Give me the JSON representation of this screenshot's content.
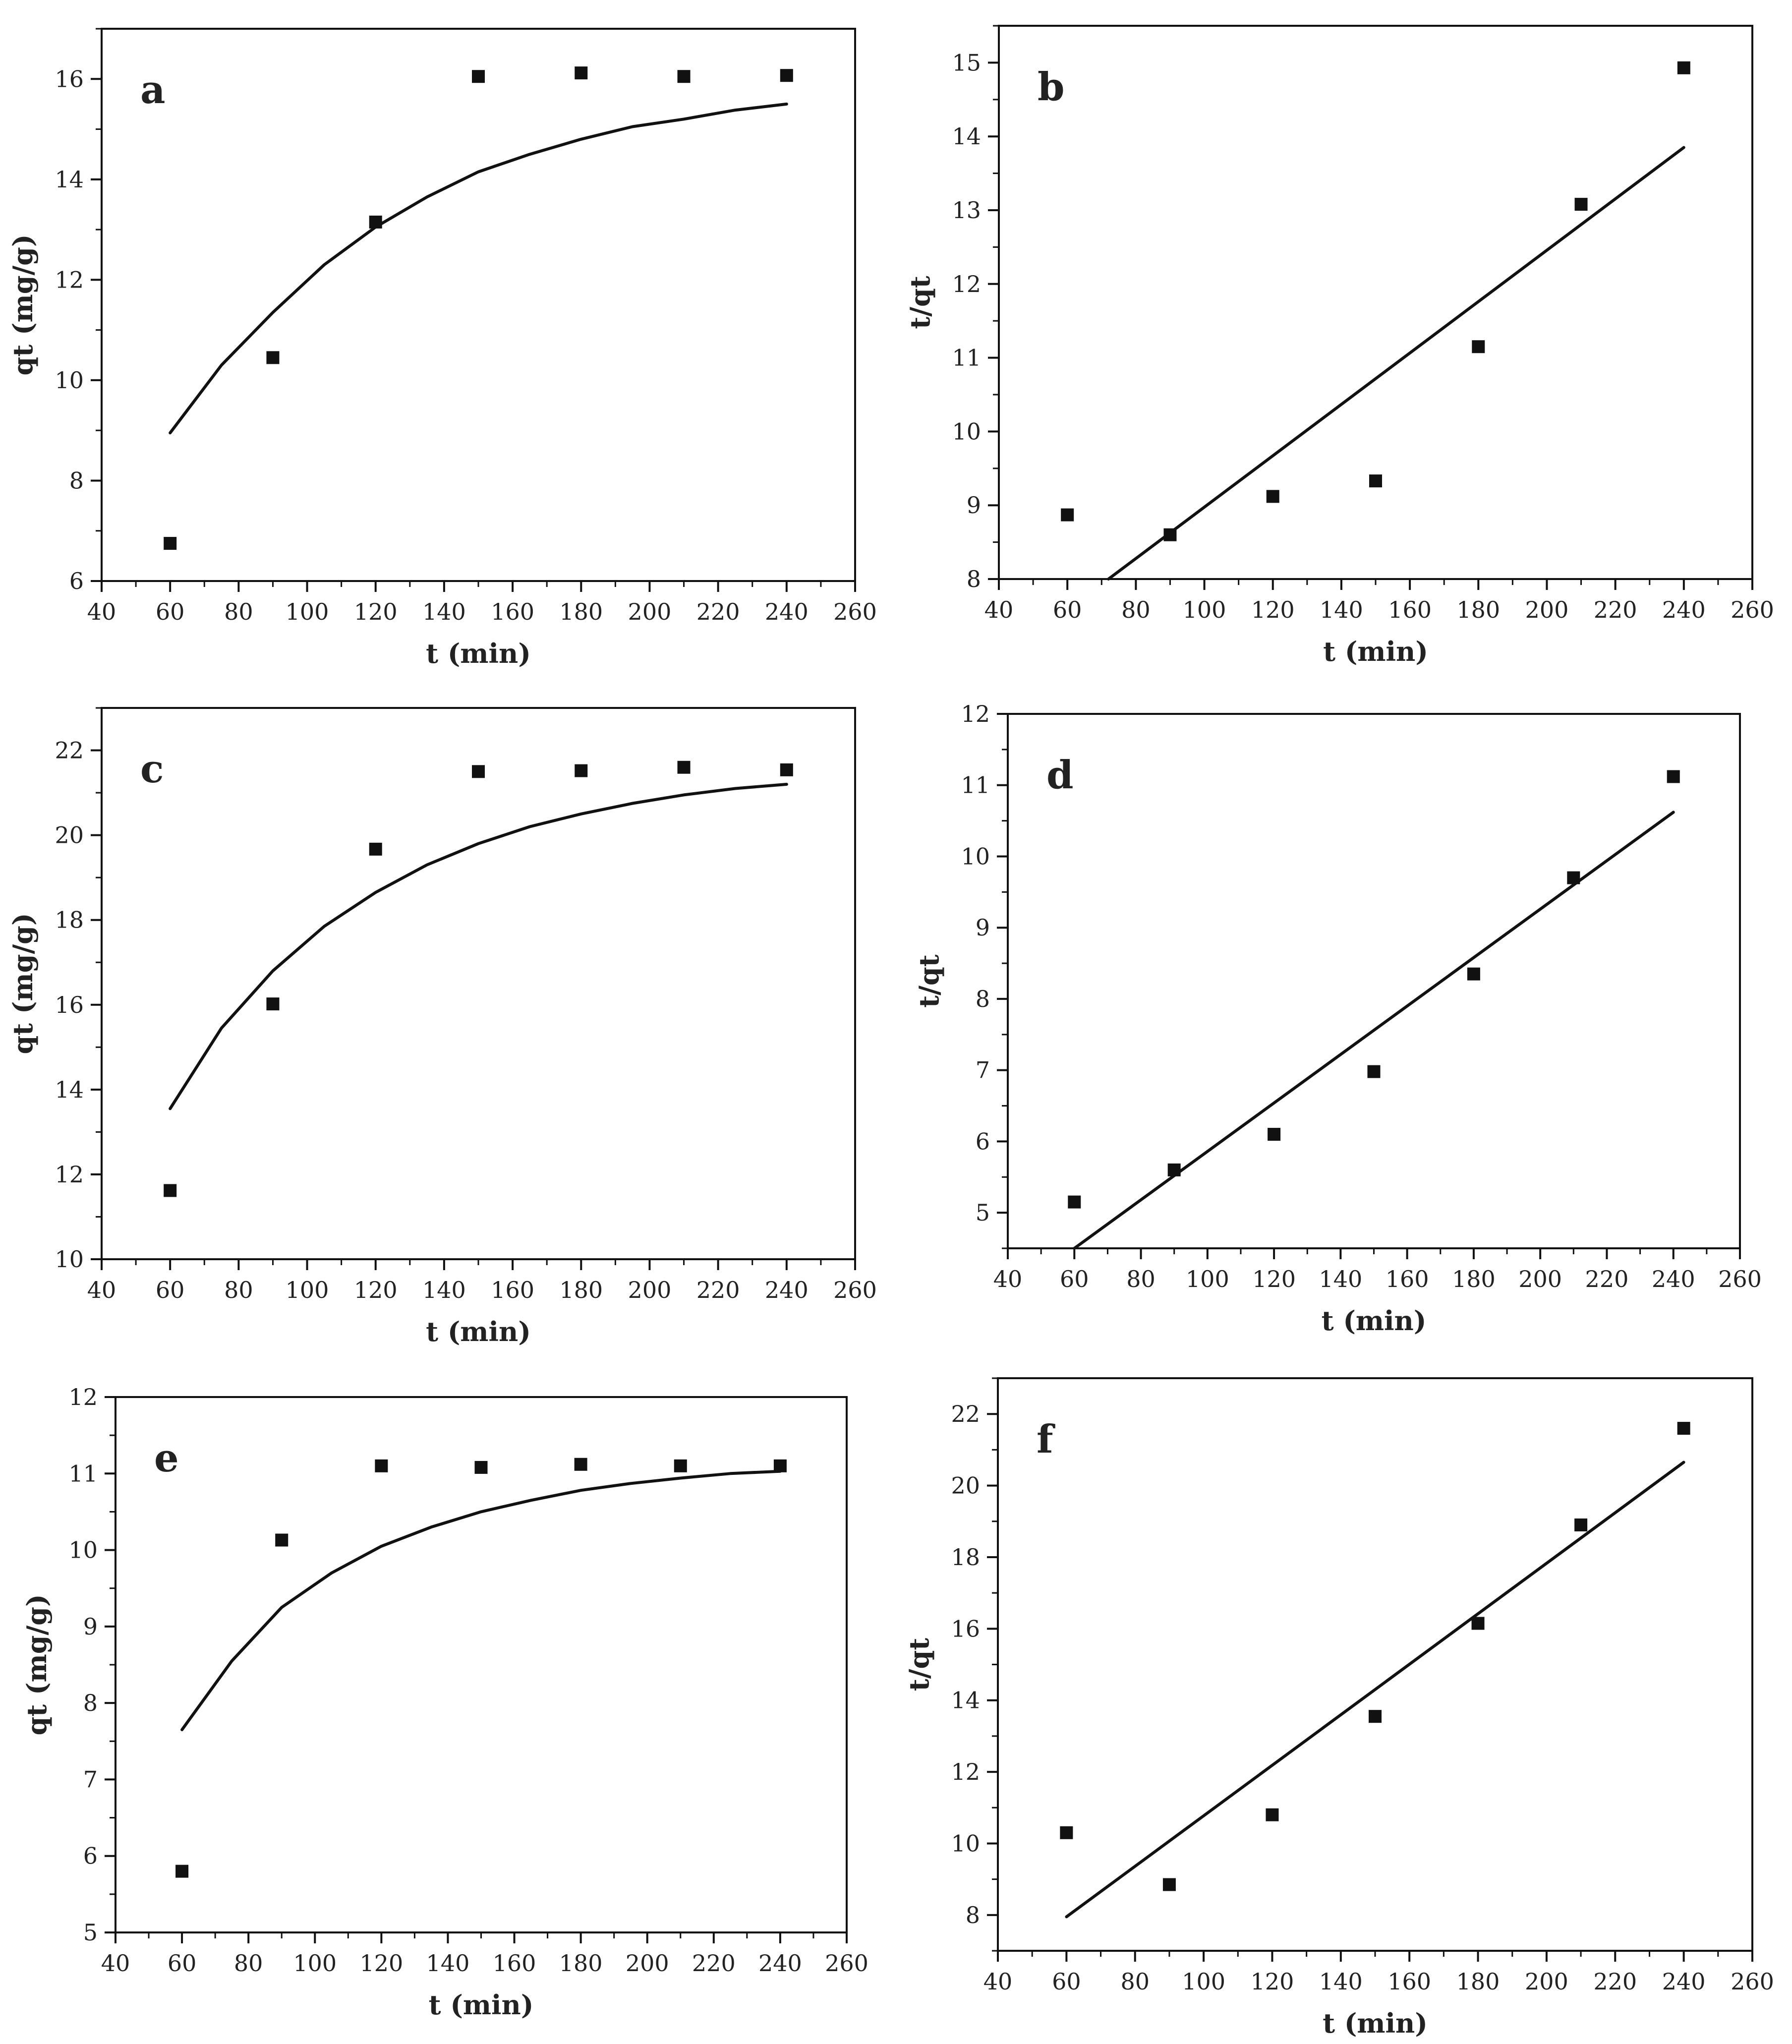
{
  "figure": {
    "style": {
      "ink": "#111111",
      "background": "#ffffff"
    }
  },
  "chart_data": [
    {
      "type": "scatter",
      "panel": "a",
      "xlabel": "t (min)",
      "ylabel": "qt (mg/g)",
      "xlim": [
        40,
        260
      ],
      "ylim": [
        6,
        17
      ],
      "xticks": [
        "40",
        "60",
        "80",
        "100",
        "120",
        "140",
        "160",
        "180",
        "200",
        "220",
        "240",
        "260"
      ],
      "yticks": [
        "6",
        "8",
        "10",
        "12",
        "14",
        "16"
      ],
      "series": [
        {
          "name": "data",
          "kind": "points",
          "x": [
            60,
            90,
            120,
            150,
            180,
            210,
            240
          ],
          "y": [
            6.75,
            10.45,
            13.15,
            16.05,
            16.12,
            16.05,
            16.07
          ]
        },
        {
          "name": "fit",
          "kind": "curve",
          "x": [
            60,
            75,
            90,
            105,
            120,
            135,
            150,
            165,
            180,
            195,
            210,
            225,
            240
          ],
          "y": [
            8.95,
            10.3,
            11.35,
            12.3,
            13.05,
            13.65,
            14.15,
            14.5,
            14.8,
            15.05,
            15.2,
            15.38,
            15.5
          ]
        }
      ]
    },
    {
      "type": "scatter",
      "panel": "b",
      "xlabel": "t (min)",
      "ylabel": "t/qt",
      "xlim": [
        40,
        260
      ],
      "ylim": [
        8,
        15.5
      ],
      "xticks": [
        "40",
        "60",
        "80",
        "100",
        "120",
        "140",
        "160",
        "180",
        "200",
        "220",
        "240",
        "260"
      ],
      "yticks": [
        "8",
        "9",
        "10",
        "11",
        "12",
        "13",
        "14",
        "15"
      ],
      "series": [
        {
          "name": "data",
          "kind": "points",
          "x": [
            60,
            90,
            120,
            150,
            180,
            210,
            240
          ],
          "y": [
            8.87,
            8.6,
            9.12,
            9.33,
            11.15,
            13.08,
            14.93
          ]
        },
        {
          "name": "fit",
          "kind": "line",
          "x": [
            72,
            240
          ],
          "y": [
            8.0,
            13.85
          ]
        }
      ]
    },
    {
      "type": "scatter",
      "panel": "c",
      "xlabel": "t (min)",
      "ylabel": "qt (mg/g)",
      "xlim": [
        40,
        260
      ],
      "ylim": [
        10,
        23
      ],
      "xticks": [
        "40",
        "60",
        "80",
        "100",
        "120",
        "140",
        "160",
        "180",
        "200",
        "220",
        "240",
        "260"
      ],
      "yticks": [
        "10",
        "12",
        "14",
        "16",
        "18",
        "20",
        "22"
      ],
      "series": [
        {
          "name": "data",
          "kind": "points",
          "x": [
            60,
            90,
            120,
            150,
            180,
            210,
            240
          ],
          "y": [
            11.62,
            16.02,
            19.67,
            21.5,
            21.52,
            21.6,
            21.54
          ]
        },
        {
          "name": "fit",
          "kind": "curve",
          "x": [
            60,
            75,
            90,
            105,
            120,
            135,
            150,
            165,
            180,
            195,
            210,
            225,
            240
          ],
          "y": [
            13.55,
            15.45,
            16.8,
            17.85,
            18.65,
            19.3,
            19.8,
            20.2,
            20.5,
            20.75,
            20.95,
            21.1,
            21.2
          ]
        }
      ]
    },
    {
      "type": "scatter",
      "panel": "d",
      "xlabel": "t (min)",
      "ylabel": "t/qt",
      "xlim": [
        40,
        260
      ],
      "ylim": [
        4.5,
        12
      ],
      "xticks": [
        "40",
        "60",
        "80",
        "100",
        "120",
        "140",
        "160",
        "180",
        "200",
        "220",
        "240",
        "260"
      ],
      "yticks": [
        "5",
        "6",
        "7",
        "8",
        "9",
        "10",
        "11",
        "12"
      ],
      "series": [
        {
          "name": "data",
          "kind": "points",
          "x": [
            60,
            90,
            120,
            150,
            180,
            210,
            240
          ],
          "y": [
            5.15,
            5.6,
            6.1,
            6.98,
            8.35,
            9.7,
            11.12
          ]
        },
        {
          "name": "fit",
          "kind": "line",
          "x": [
            60,
            240
          ],
          "y": [
            4.5,
            10.62
          ]
        }
      ]
    },
    {
      "type": "scatter",
      "panel": "e",
      "xlabel": "t (min)",
      "ylabel": "qt (mg/g)",
      "xlim": [
        40,
        260
      ],
      "ylim": [
        5,
        12
      ],
      "xticks": [
        "40",
        "60",
        "80",
        "100",
        "120",
        "140",
        "160",
        "180",
        "200",
        "220",
        "240",
        "260"
      ],
      "yticks": [
        "5",
        "6",
        "7",
        "8",
        "9",
        "10",
        "11",
        "12"
      ],
      "series": [
        {
          "name": "data",
          "kind": "points",
          "x": [
            60,
            90,
            120,
            150,
            180,
            210,
            240
          ],
          "y": [
            5.8,
            10.13,
            11.1,
            11.08,
            11.12,
            11.1,
            11.1
          ]
        },
        {
          "name": "fit",
          "kind": "curve",
          "x": [
            60,
            75,
            90,
            105,
            120,
            135,
            150,
            165,
            180,
            195,
            210,
            225,
            240
          ],
          "y": [
            7.65,
            8.55,
            9.25,
            9.7,
            10.05,
            10.3,
            10.5,
            10.65,
            10.78,
            10.87,
            10.94,
            11.0,
            11.03
          ]
        }
      ]
    },
    {
      "type": "scatter",
      "panel": "f",
      "xlabel": "t (min)",
      "ylabel": "t/qt",
      "xlim": [
        40,
        260
      ],
      "ylim": [
        7,
        23
      ],
      "xticks": [
        "40",
        "60",
        "80",
        "100",
        "120",
        "140",
        "160",
        "180",
        "200",
        "220",
        "240",
        "260"
      ],
      "yticks": [
        "8",
        "10",
        "12",
        "14",
        "16",
        "18",
        "20",
        "22"
      ],
      "series": [
        {
          "name": "data",
          "kind": "points",
          "x": [
            60,
            90,
            120,
            150,
            180,
            210,
            240
          ],
          "y": [
            10.3,
            8.85,
            10.8,
            13.55,
            16.15,
            18.9,
            21.6
          ]
        },
        {
          "name": "fit",
          "kind": "line",
          "x": [
            60,
            240
          ],
          "y": [
            7.95,
            20.65
          ]
        }
      ]
    }
  ]
}
